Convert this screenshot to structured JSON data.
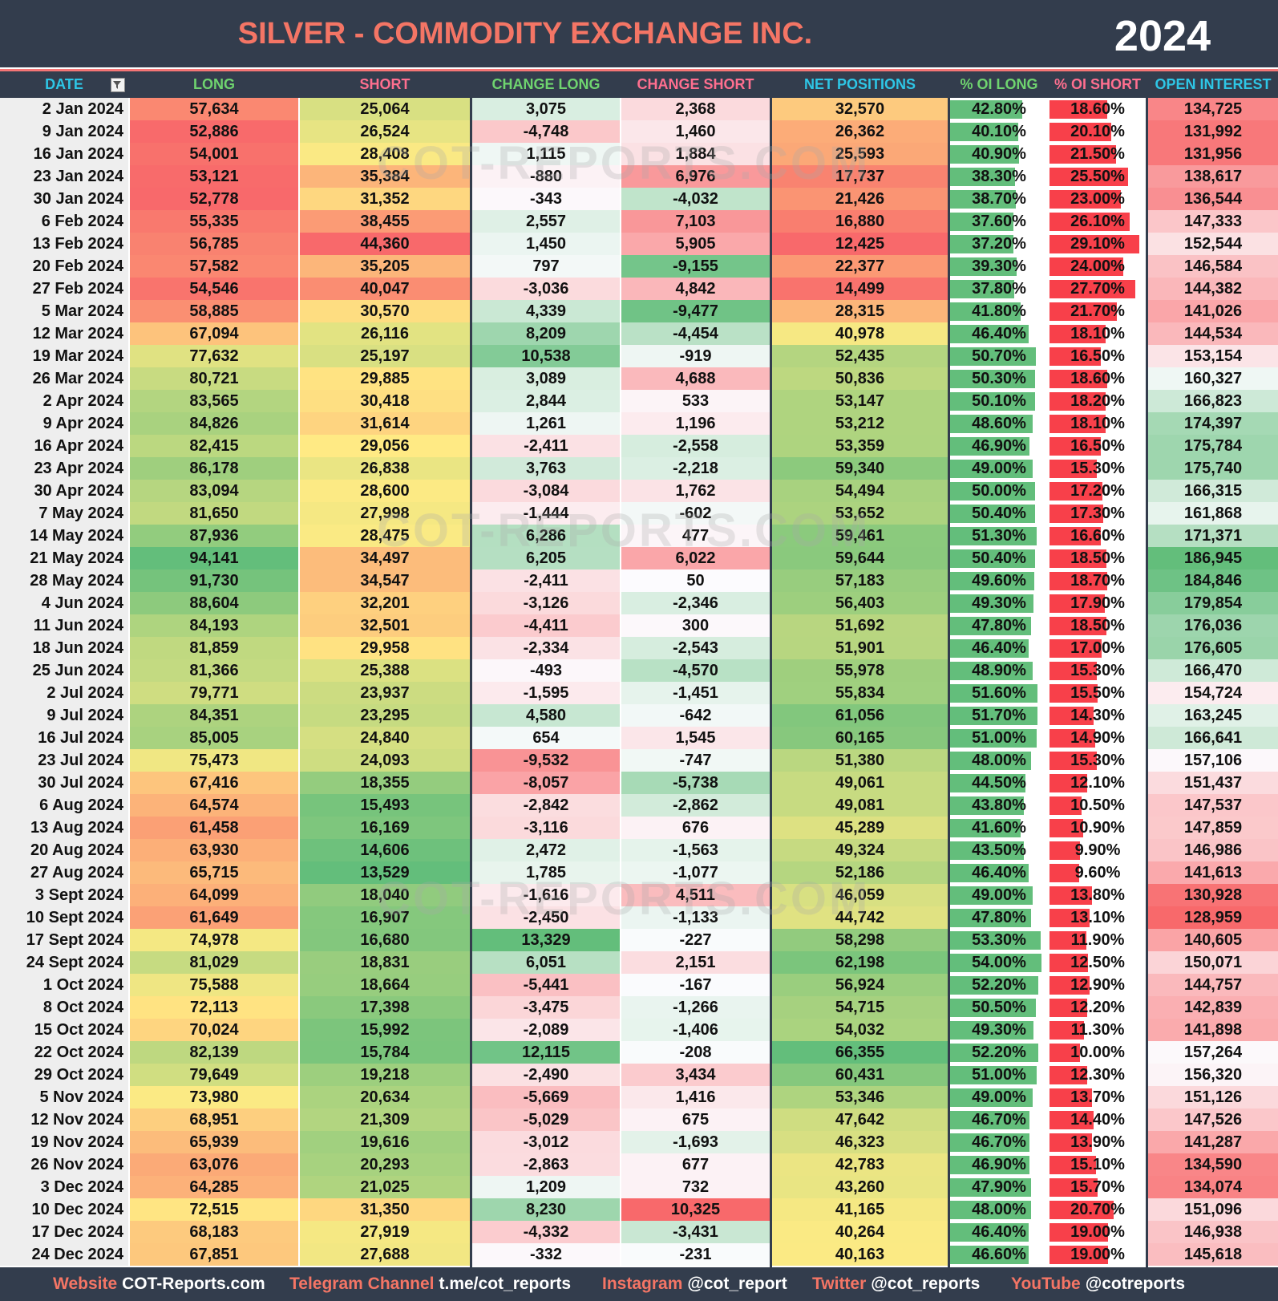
{
  "header": {
    "title": "SILVER - COMMODITY EXCHANGE INC.",
    "year": "2024"
  },
  "columns": [
    "DATE",
    "LONG",
    "SHORT",
    "CHANGE LONG",
    "CHANGE SHORT",
    "NET POSITIONS",
    "% OI LONG",
    "% OI SHORT",
    "OPEN INTEREST"
  ],
  "rows": [
    [
      "2 Jan 2024",
      "57,634",
      "25,064",
      "3,075",
      "2,368",
      "32,570",
      "42.80%",
      "18.60%",
      "134,725"
    ],
    [
      "9 Jan 2024",
      "52,886",
      "26,524",
      "-4,748",
      "1,460",
      "26,362",
      "40.10%",
      "20.10%",
      "131,992"
    ],
    [
      "16 Jan 2024",
      "54,001",
      "28,408",
      "1,115",
      "1,884",
      "25,593",
      "40.90%",
      "21.50%",
      "131,956"
    ],
    [
      "23 Jan 2024",
      "53,121",
      "35,384",
      "-880",
      "6,976",
      "17,737",
      "38.30%",
      "25.50%",
      "138,617"
    ],
    [
      "30 Jan 2024",
      "52,778",
      "31,352",
      "-343",
      "-4,032",
      "21,426",
      "38.70%",
      "23.00%",
      "136,544"
    ],
    [
      "6 Feb 2024",
      "55,335",
      "38,455",
      "2,557",
      "7,103",
      "16,880",
      "37.60%",
      "26.10%",
      "147,333"
    ],
    [
      "13 Feb 2024",
      "56,785",
      "44,360",
      "1,450",
      "5,905",
      "12,425",
      "37.20%",
      "29.10%",
      "152,544"
    ],
    [
      "20 Feb 2024",
      "57,582",
      "35,205",
      "797",
      "-9,155",
      "22,377",
      "39.30%",
      "24.00%",
      "146,584"
    ],
    [
      "27 Feb 2024",
      "54,546",
      "40,047",
      "-3,036",
      "4,842",
      "14,499",
      "37.80%",
      "27.70%",
      "144,382"
    ],
    [
      "5 Mar 2024",
      "58,885",
      "30,570",
      "4,339",
      "-9,477",
      "28,315",
      "41.80%",
      "21.70%",
      "141,026"
    ],
    [
      "12 Mar 2024",
      "67,094",
      "26,116",
      "8,209",
      "-4,454",
      "40,978",
      "46.40%",
      "18.10%",
      "144,534"
    ],
    [
      "19 Mar 2024",
      "77,632",
      "25,197",
      "10,538",
      "-919",
      "52,435",
      "50.70%",
      "16.50%",
      "153,154"
    ],
    [
      "26 Mar 2024",
      "80,721",
      "29,885",
      "3,089",
      "4,688",
      "50,836",
      "50.30%",
      "18.60%",
      "160,327"
    ],
    [
      "2 Apr 2024",
      "83,565",
      "30,418",
      "2,844",
      "533",
      "53,147",
      "50.10%",
      "18.20%",
      "166,823"
    ],
    [
      "9 Apr 2024",
      "84,826",
      "31,614",
      "1,261",
      "1,196",
      "53,212",
      "48.60%",
      "18.10%",
      "174,397"
    ],
    [
      "16 Apr 2024",
      "82,415",
      "29,056",
      "-2,411",
      "-2,558",
      "53,359",
      "46.90%",
      "16.50%",
      "175,784"
    ],
    [
      "23 Apr 2024",
      "86,178",
      "26,838",
      "3,763",
      "-2,218",
      "59,340",
      "49.00%",
      "15.30%",
      "175,740"
    ],
    [
      "30 Apr 2024",
      "83,094",
      "28,600",
      "-3,084",
      "1,762",
      "54,494",
      "50.00%",
      "17.20%",
      "166,315"
    ],
    [
      "7 May 2024",
      "81,650",
      "27,998",
      "-1,444",
      "-602",
      "53,652",
      "50.40%",
      "17.30%",
      "161,868"
    ],
    [
      "14 May 2024",
      "87,936",
      "28,475",
      "6,286",
      "477",
      "59,461",
      "51.30%",
      "16.60%",
      "171,371"
    ],
    [
      "21 May 2024",
      "94,141",
      "34,497",
      "6,205",
      "6,022",
      "59,644",
      "50.40%",
      "18.50%",
      "186,945"
    ],
    [
      "28 May 2024",
      "91,730",
      "34,547",
      "-2,411",
      "50",
      "57,183",
      "49.60%",
      "18.70%",
      "184,846"
    ],
    [
      "4 Jun 2024",
      "88,604",
      "32,201",
      "-3,126",
      "-2,346",
      "56,403",
      "49.30%",
      "17.90%",
      "179,854"
    ],
    [
      "11 Jun 2024",
      "84,193",
      "32,501",
      "-4,411",
      "300",
      "51,692",
      "47.80%",
      "18.50%",
      "176,036"
    ],
    [
      "18 Jun 2024",
      "81,859",
      "29,958",
      "-2,334",
      "-2,543",
      "51,901",
      "46.40%",
      "17.00%",
      "176,605"
    ],
    [
      "25 Jun 2024",
      "81,366",
      "25,388",
      "-493",
      "-4,570",
      "55,978",
      "48.90%",
      "15.30%",
      "166,470"
    ],
    [
      "2 Jul 2024",
      "79,771",
      "23,937",
      "-1,595",
      "-1,451",
      "55,834",
      "51.60%",
      "15.50%",
      "154,724"
    ],
    [
      "9 Jul 2024",
      "84,351",
      "23,295",
      "4,580",
      "-642",
      "61,056",
      "51.70%",
      "14.30%",
      "163,245"
    ],
    [
      "16 Jul 2024",
      "85,005",
      "24,840",
      "654",
      "1,545",
      "60,165",
      "51.00%",
      "14.90%",
      "166,641"
    ],
    [
      "23 Jul 2024",
      "75,473",
      "24,093",
      "-9,532",
      "-747",
      "51,380",
      "48.00%",
      "15.30%",
      "157,106"
    ],
    [
      "30 Jul 2024",
      "67,416",
      "18,355",
      "-8,057",
      "-5,738",
      "49,061",
      "44.50%",
      "12.10%",
      "151,437"
    ],
    [
      "6 Aug 2024",
      "64,574",
      "15,493",
      "-2,842",
      "-2,862",
      "49,081",
      "43.80%",
      "10.50%",
      "147,537"
    ],
    [
      "13 Aug 2024",
      "61,458",
      "16,169",
      "-3,116",
      "676",
      "45,289",
      "41.60%",
      "10.90%",
      "147,859"
    ],
    [
      "20 Aug 2024",
      "63,930",
      "14,606",
      "2,472",
      "-1,563",
      "49,324",
      "43.50%",
      "9.90%",
      "146,986"
    ],
    [
      "27 Aug 2024",
      "65,715",
      "13,529",
      "1,785",
      "-1,077",
      "52,186",
      "46.40%",
      "9.60%",
      "141,613"
    ],
    [
      "3 Sept 2024",
      "64,099",
      "18,040",
      "-1,616",
      "4,511",
      "46,059",
      "49.00%",
      "13.80%",
      "130,928"
    ],
    [
      "10 Sept 2024",
      "61,649",
      "16,907",
      "-2,450",
      "-1,133",
      "44,742",
      "47.80%",
      "13.10%",
      "128,959"
    ],
    [
      "17 Sept 2024",
      "74,978",
      "16,680",
      "13,329",
      "-227",
      "58,298",
      "53.30%",
      "11.90%",
      "140,605"
    ],
    [
      "24 Sept 2024",
      "81,029",
      "18,831",
      "6,051",
      "2,151",
      "62,198",
      "54.00%",
      "12.50%",
      "150,071"
    ],
    [
      "1 Oct 2024",
      "75,588",
      "18,664",
      "-5,441",
      "-167",
      "56,924",
      "52.20%",
      "12.90%",
      "144,757"
    ],
    [
      "8 Oct 2024",
      "72,113",
      "17,398",
      "-3,475",
      "-1,266",
      "54,715",
      "50.50%",
      "12.20%",
      "142,839"
    ],
    [
      "15 Oct 2024",
      "70,024",
      "15,992",
      "-2,089",
      "-1,406",
      "54,032",
      "49.30%",
      "11.30%",
      "141,898"
    ],
    [
      "22 Oct 2024",
      "82,139",
      "15,784",
      "12,115",
      "-208",
      "66,355",
      "52.20%",
      "10.00%",
      "157,264"
    ],
    [
      "29 Oct 2024",
      "79,649",
      "19,218",
      "-2,490",
      "3,434",
      "60,431",
      "51.00%",
      "12.30%",
      "156,320"
    ],
    [
      "5 Nov 2024",
      "73,980",
      "20,634",
      "-5,669",
      "1,416",
      "53,346",
      "49.00%",
      "13.70%",
      "151,126"
    ],
    [
      "12 Nov 2024",
      "68,951",
      "21,309",
      "-5,029",
      "675",
      "47,642",
      "46.70%",
      "14.40%",
      "147,526"
    ],
    [
      "19 Nov 2024",
      "65,939",
      "19,616",
      "-3,012",
      "-1,693",
      "46,323",
      "46.70%",
      "13.90%",
      "141,287"
    ],
    [
      "26 Nov 2024",
      "63,076",
      "20,293",
      "-2,863",
      "677",
      "42,783",
      "46.90%",
      "15.10%",
      "134,590"
    ],
    [
      "3 Dec 2024",
      "64,285",
      "21,025",
      "1,209",
      "732",
      "43,260",
      "47.90%",
      "15.70%",
      "134,074"
    ],
    [
      "10 Dec 2024",
      "72,515",
      "31,350",
      "8,230",
      "10,325",
      "41,165",
      "48.00%",
      "20.70%",
      "151,096"
    ],
    [
      "17 Dec 2024",
      "68,183",
      "27,919",
      "-4,332",
      "-3,431",
      "40,264",
      "46.40%",
      "19.00%",
      "146,938"
    ],
    [
      "24 Dec 2024",
      "67,851",
      "27,688",
      "-332",
      "-231",
      "40,163",
      "46.60%",
      "19.00%",
      "145,618"
    ]
  ],
  "watermark": "COT-REPORTS.COM",
  "footer": [
    {
      "label": "Website",
      "value": "COT-Reports.com"
    },
    {
      "label": "Telegram Channel",
      "value": "t.me/cot_reports"
    },
    {
      "label": "Instagram",
      "value": "@cot_report"
    },
    {
      "label": "Twitter",
      "value": "@cot_reports"
    },
    {
      "label": "YouTube",
      "value": "@cotreports"
    }
  ]
}
